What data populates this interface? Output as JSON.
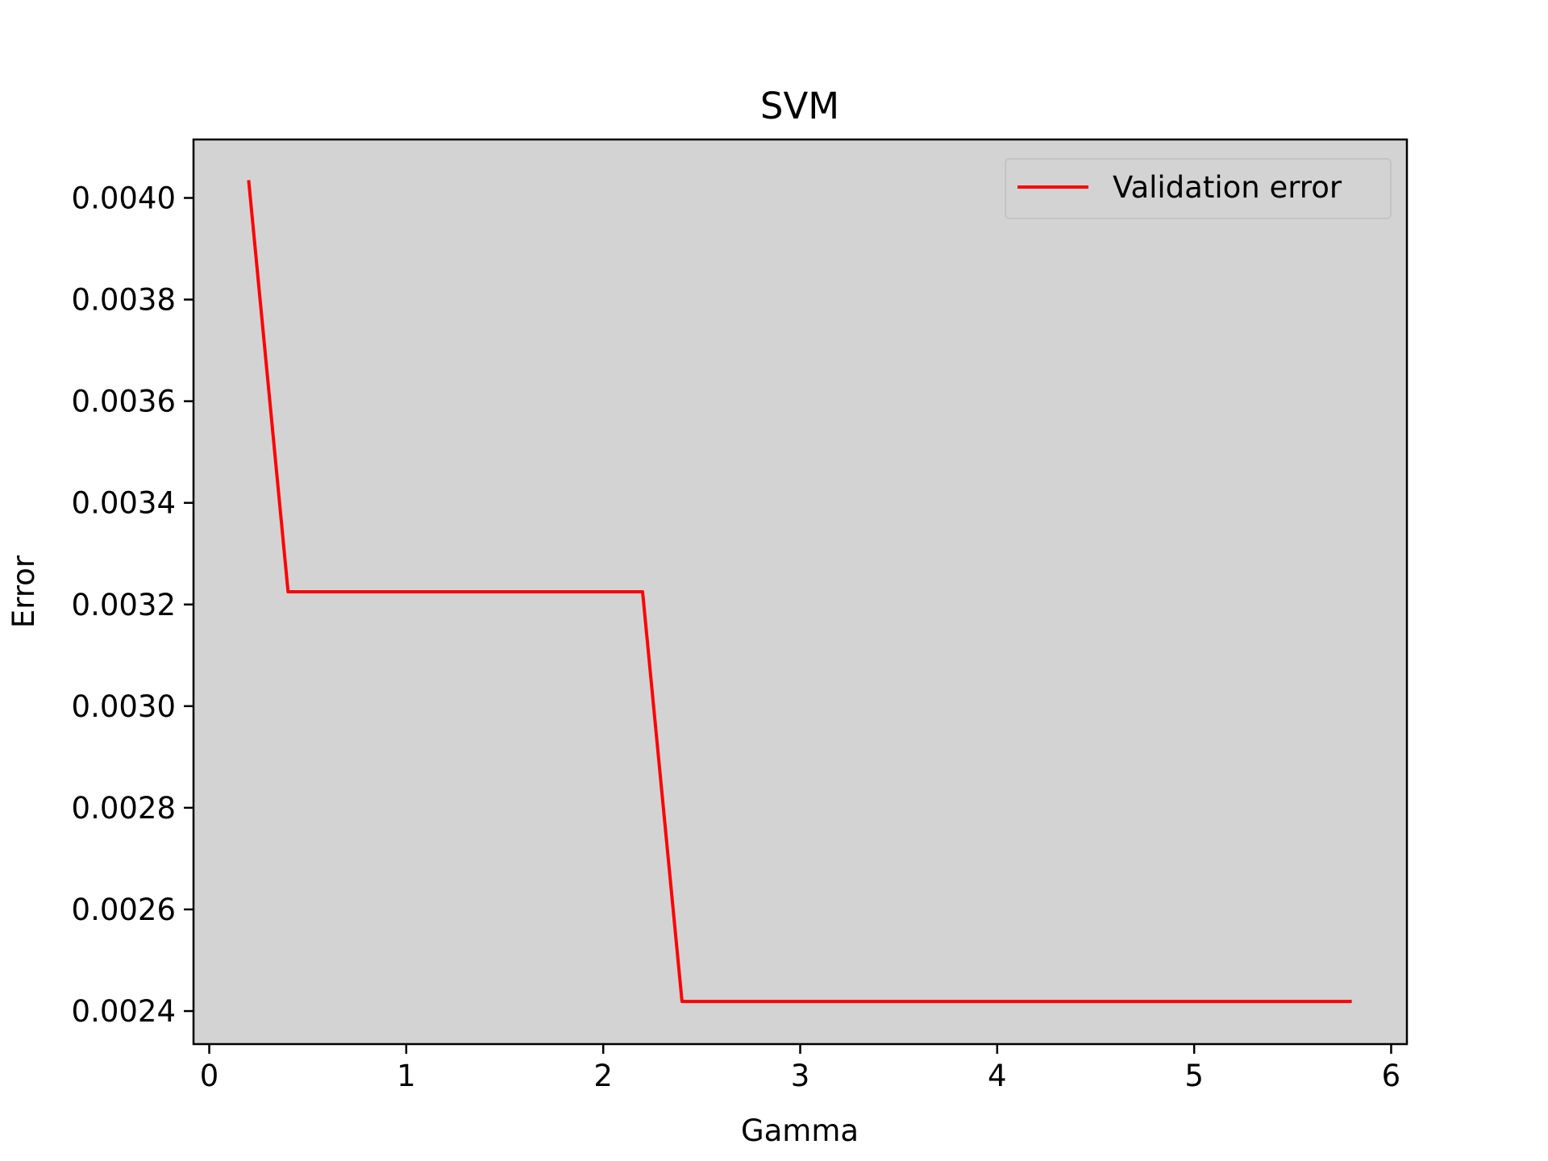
{
  "chart_data": {
    "type": "line",
    "title": "SVM",
    "xlabel": "Gamma",
    "ylabel": "Error",
    "xlim": [
      -0.08,
      6.08
    ],
    "ylim": [
      0.002335,
      0.004115
    ],
    "xticks": [
      0,
      1,
      2,
      3,
      4,
      5,
      6
    ],
    "xtick_labels": [
      "0",
      "1",
      "2",
      "3",
      "4",
      "5",
      "6"
    ],
    "yticks": [
      0.0024,
      0.0026,
      0.0028,
      0.003,
      0.0032,
      0.0034,
      0.0036,
      0.0038,
      0.004
    ],
    "ytick_labels": [
      "0.0024",
      "0.0026",
      "0.0028",
      "0.0030",
      "0.0032",
      "0.0034",
      "0.0036",
      "0.0038",
      "0.0040"
    ],
    "grid": false,
    "legend_position": "top-right",
    "plot_background": "#d3d3d3",
    "series": [
      {
        "name": "Validation error",
        "color": "#ff0000",
        "x": [
          0.2,
          0.4,
          0.6,
          0.8,
          1.0,
          1.2,
          1.4,
          1.6,
          1.8,
          2.0,
          2.2,
          2.4,
          2.6,
          2.8,
          3.0,
          3.2,
          3.4,
          3.6,
          3.8,
          4.0,
          4.2,
          4.4,
          4.6,
          4.8,
          5.0,
          5.2,
          5.4,
          5.6,
          5.8
        ],
        "y": [
          0.004035,
          0.003225,
          0.003225,
          0.003225,
          0.003225,
          0.003225,
          0.003225,
          0.003225,
          0.003225,
          0.003225,
          0.003225,
          0.002419,
          0.002419,
          0.002419,
          0.002419,
          0.002419,
          0.002419,
          0.002419,
          0.002419,
          0.002419,
          0.002419,
          0.002419,
          0.002419,
          0.002419,
          0.002419,
          0.002419,
          0.002419,
          0.002419,
          0.002419
        ]
      }
    ]
  }
}
